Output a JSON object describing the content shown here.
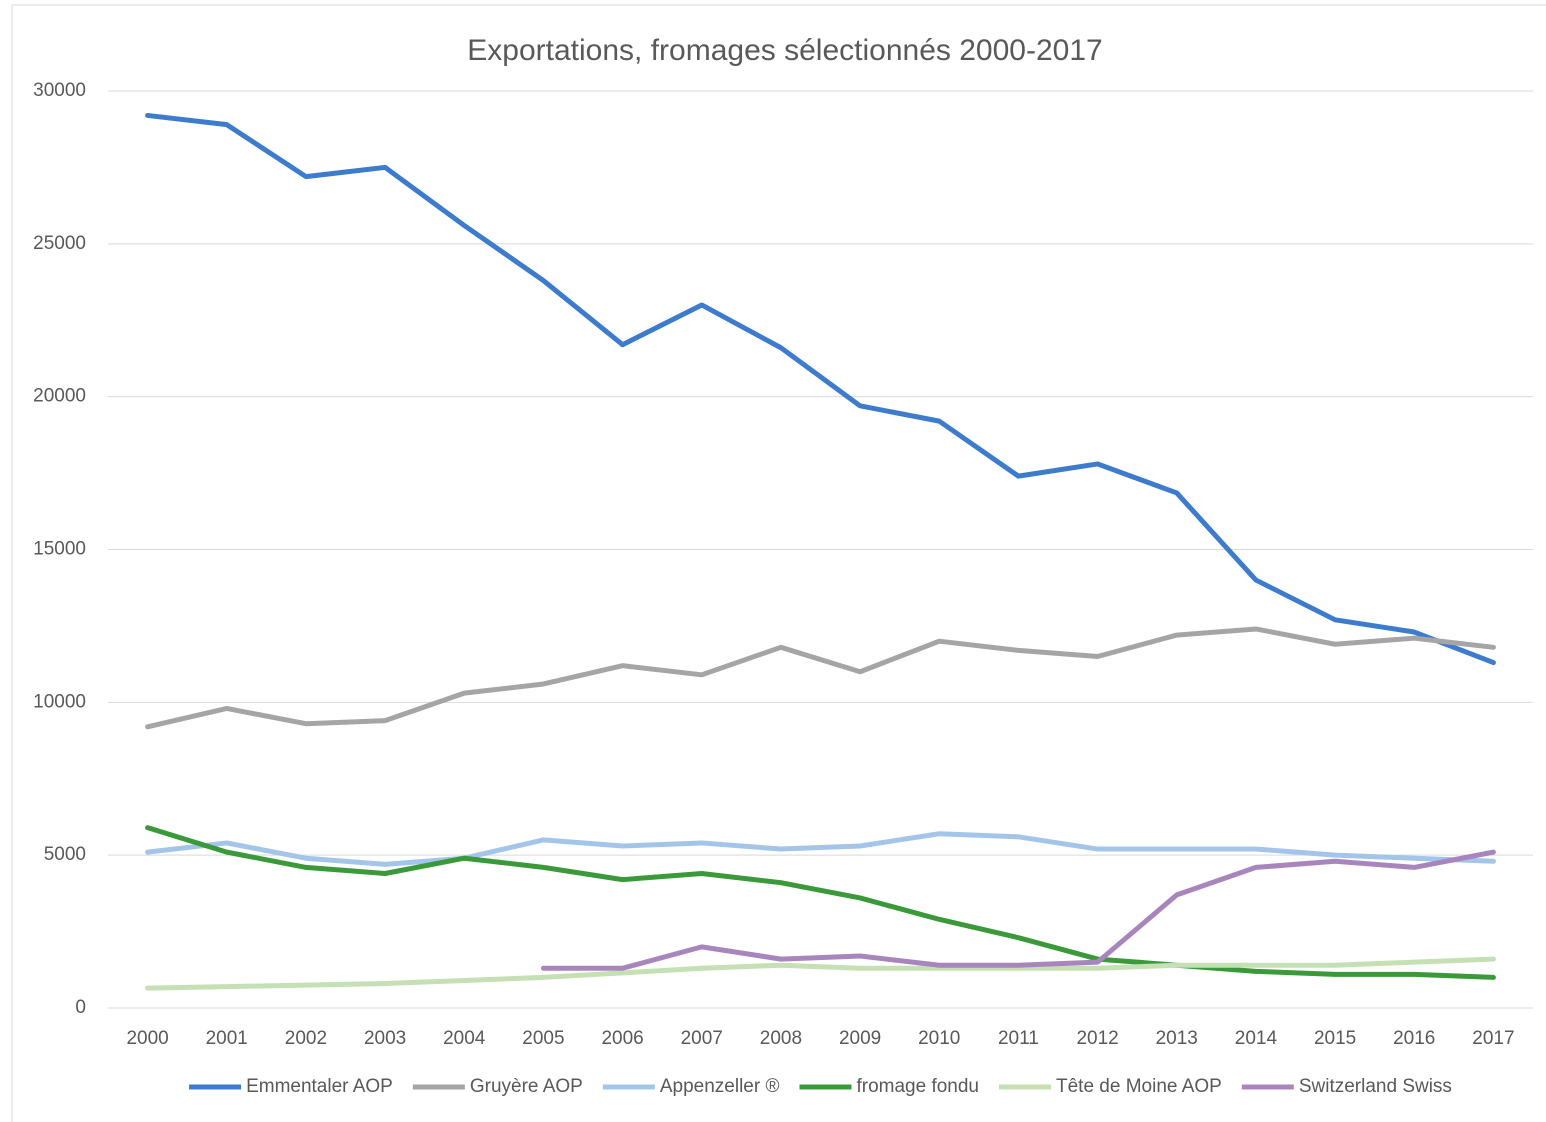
{
  "chart_data": {
    "type": "line",
    "title": "Exportations, fromages sélectionnés 2000-2017",
    "categories": [
      "2000",
      "2001",
      "2002",
      "2003",
      "2004",
      "2005",
      "2006",
      "2007",
      "2008",
      "2009",
      "2010",
      "2011",
      "2012",
      "2013",
      "2014",
      "2015",
      "2016",
      "2017"
    ],
    "series": [
      {
        "name": "Emmentaler AOP",
        "color": "#3d7ccc",
        "values": [
          29200,
          28900,
          27200,
          27500,
          25600,
          23800,
          21700,
          23000,
          21600,
          19700,
          19200,
          17400,
          17800,
          16850,
          14000,
          12700,
          12300,
          11300
        ]
      },
      {
        "name": "Gruyère AOP",
        "color": "#a5a5a5",
        "values": [
          9200,
          9800,
          9300,
          9400,
          10300,
          10600,
          11200,
          10900,
          11800,
          11000,
          12000,
          11700,
          11500,
          12200,
          12400,
          11900,
          12100,
          11800
        ]
      },
      {
        "name": "Appenzeller ®",
        "color": "#a4c5ea",
        "values": [
          5100,
          5400,
          4900,
          4700,
          4900,
          5500,
          5300,
          5400,
          5200,
          5300,
          5700,
          5600,
          5200,
          5200,
          5200,
          5000,
          4900,
          4800
        ]
      },
      {
        "name": "fromage fondu",
        "color": "#3a9a3a",
        "values": [
          5900,
          5100,
          4600,
          4400,
          4900,
          4600,
          4200,
          4400,
          4100,
          3600,
          2900,
          2300,
          1600,
          1400,
          1200,
          1100,
          1100,
          1000
        ]
      },
      {
        "name": "Tête de Moine AOP",
        "color": "#c5e0b4",
        "values": [
          650,
          700,
          750,
          800,
          900,
          1000,
          1150,
          1300,
          1400,
          1300,
          1300,
          1300,
          1300,
          1400,
          1400,
          1400,
          1500,
          1600
        ]
      },
      {
        "name": "Switzerland Swiss",
        "color": "#a886bd",
        "values": [
          null,
          null,
          null,
          null,
          null,
          1300,
          1300,
          2000,
          1600,
          1700,
          1400,
          1400,
          1500,
          3700,
          4600,
          4800,
          4600,
          5100
        ]
      }
    ],
    "ylim": [
      0,
      30000
    ],
    "yticks": [
      0,
      5000,
      10000,
      15000,
      20000,
      25000,
      30000
    ],
    "grid": true,
    "legend": "bottom"
  }
}
